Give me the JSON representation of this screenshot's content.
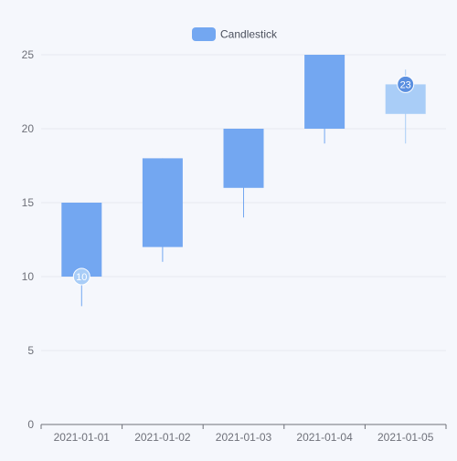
{
  "chart_data": {
    "type": "candlestick",
    "legend": {
      "label": "Candlestick",
      "color": "#73a7f1",
      "position": "top-center"
    },
    "categories": [
      "2021-01-01",
      "2021-01-02",
      "2021-01-03",
      "2021-01-04",
      "2021-01-05"
    ],
    "series": [
      {
        "name": "Candlestick",
        "ohlc": [
          {
            "date": "2021-01-01",
            "open": 10,
            "close": 15,
            "low": 8,
            "high": 15
          },
          {
            "date": "2021-01-02",
            "open": 12,
            "close": 18,
            "low": 11,
            "high": 18
          },
          {
            "date": "2021-01-03",
            "open": 16,
            "close": 20,
            "low": 14,
            "high": 20
          },
          {
            "date": "2021-01-04",
            "open": 20,
            "close": 25,
            "low": 19,
            "high": 25
          },
          {
            "date": "2021-01-05",
            "open": 23,
            "close": 21,
            "low": 19,
            "high": 24
          }
        ]
      }
    ],
    "markers": [
      {
        "label": "10",
        "date": "2021-01-01",
        "value": 10
      },
      {
        "label": "23",
        "date": "2021-01-05",
        "value": 23
      }
    ],
    "y_axis": {
      "min": 0,
      "max": 25,
      "interval": 5,
      "ticks": [
        "0",
        "5",
        "10",
        "15",
        "20",
        "25"
      ]
    },
    "grid": true,
    "colors": {
      "rising": "#73a7f1",
      "falling": "#a9cdf7",
      "marker_low": "#a9cdf7",
      "marker_high": "#5a8fe0",
      "axis": "#6e7079",
      "grid": "#e6e9f0"
    }
  }
}
